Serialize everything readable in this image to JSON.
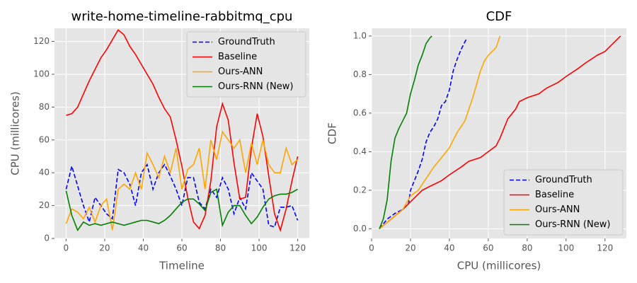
{
  "chart_data": [
    {
      "type": "line",
      "title": "write-home-timeline-rabbitmq_cpu",
      "xlabel": "Timeline",
      "ylabel": "CPU (millicores)",
      "x": [
        0,
        3,
        6,
        9,
        12,
        15,
        18,
        21,
        24,
        27,
        30,
        33,
        36,
        39,
        42,
        45,
        48,
        51,
        54,
        57,
        60,
        63,
        66,
        69,
        72,
        75,
        78,
        81,
        84,
        87,
        90,
        93,
        96,
        99,
        102,
        105,
        108,
        111,
        114,
        117,
        120
      ],
      "series": [
        {
          "name": "GroundTruth",
          "color": "#0000ff",
          "linestyle": "dashed",
          "values": [
            30,
            44,
            32,
            20,
            10,
            25,
            20,
            15,
            12,
            42,
            40,
            33,
            20,
            40,
            45,
            30,
            40,
            45,
            38,
            30,
            20,
            37,
            37,
            22,
            18,
            30,
            25,
            37,
            30,
            15,
            25,
            18,
            40,
            35,
            30,
            8,
            7,
            19,
            19,
            20,
            11
          ]
        },
        {
          "name": "Baseline",
          "color": "#ff0000",
          "linestyle": "solid",
          "values": [
            75,
            76,
            80,
            88,
            96,
            103,
            110,
            115,
            121,
            127,
            124,
            117,
            112,
            106,
            100,
            94,
            86,
            79,
            74,
            60,
            44,
            25,
            10,
            6,
            14,
            35,
            68,
            82,
            72,
            46,
            24,
            25,
            55,
            76,
            62,
            38,
            15,
            5,
            18,
            35,
            50
          ]
        },
        {
          "name": "Ours-ANN",
          "color": "#ffa500",
          "linestyle": "solid",
          "values": [
            9,
            18,
            16,
            12,
            19,
            10,
            20,
            24,
            5,
            30,
            33,
            30,
            40,
            30,
            52,
            45,
            37,
            50,
            40,
            55,
            30,
            42,
            45,
            55,
            30,
            60,
            48,
            65,
            60,
            55,
            60,
            40,
            58,
            45,
            60,
            45,
            40,
            40,
            55,
            45,
            48
          ]
        },
        {
          "name": "Ours-RNN (New)",
          "color": "#008000",
          "linestyle": "solid",
          "values": [
            29,
            14,
            5,
            10,
            8,
            9,
            8,
            9,
            10,
            9,
            8,
            9,
            10,
            11,
            11,
            10,
            9,
            11,
            14,
            18,
            22,
            24,
            24,
            21,
            17,
            28,
            30,
            8,
            16,
            20,
            20,
            14,
            9,
            13,
            19,
            24,
            26,
            27,
            27,
            28,
            30
          ]
        }
      ],
      "xlim": [
        -6,
        126
      ],
      "xticks": [
        0,
        20,
        40,
        60,
        80,
        100,
        120
      ],
      "ylim": [
        0,
        128
      ],
      "yticks": [
        0,
        20,
        40,
        60,
        80,
        100,
        120
      ],
      "grid": true,
      "legend": "upper right"
    },
    {
      "type": "line",
      "title": "CDF",
      "xlabel": "CPU (millicores)",
      "ylabel": "CDF",
      "series": [
        {
          "name": "GroundTruth",
          "color": "#0000ff",
          "linestyle": "dashed",
          "x": [
            4,
            8,
            12,
            16,
            19,
            20,
            22,
            24,
            26,
            28,
            30,
            32,
            34,
            36,
            38,
            40,
            42,
            44,
            46,
            48,
            49
          ],
          "values": [
            0,
            0.05,
            0.08,
            0.1,
            0.13,
            0.2,
            0.25,
            0.3,
            0.36,
            0.45,
            0.5,
            0.53,
            0.57,
            0.64,
            0.66,
            0.72,
            0.82,
            0.88,
            0.93,
            0.97,
            0.99
          ]
        },
        {
          "name": "Baseline",
          "color": "#ff0000",
          "linestyle": "solid",
          "x": [
            4,
            10,
            16,
            20,
            26,
            30,
            36,
            40,
            46,
            50,
            56,
            60,
            64,
            66,
            70,
            74,
            76,
            80,
            86,
            90,
            96,
            100,
            106,
            110,
            116,
            120,
            124,
            128
          ],
          "values": [
            0,
            0.05,
            0.1,
            0.14,
            0.2,
            0.22,
            0.25,
            0.28,
            0.32,
            0.35,
            0.37,
            0.4,
            0.43,
            0.47,
            0.57,
            0.62,
            0.66,
            0.68,
            0.7,
            0.73,
            0.76,
            0.79,
            0.83,
            0.86,
            0.9,
            0.92,
            0.96,
            1.0
          ]
        },
        {
          "name": "Ours-ANN",
          "color": "#ffa500",
          "linestyle": "solid",
          "x": [
            4,
            10,
            16,
            20,
            24,
            28,
            32,
            36,
            40,
            44,
            48,
            50,
            52,
            54,
            56,
            58,
            60,
            62,
            64,
            66
          ],
          "values": [
            0,
            0.05,
            0.1,
            0.17,
            0.2,
            0.26,
            0.32,
            0.37,
            0.42,
            0.5,
            0.56,
            0.62,
            0.68,
            0.75,
            0.82,
            0.87,
            0.9,
            0.92,
            0.94,
            1.0
          ]
        },
        {
          "name": "Ours-RNN (New)",
          "color": "#008000",
          "linestyle": "solid",
          "x": [
            4,
            6,
            8,
            10,
            12,
            14,
            16,
            18,
            20,
            22,
            24,
            26,
            28,
            30,
            31
          ],
          "values": [
            0,
            0.05,
            0.15,
            0.35,
            0.47,
            0.52,
            0.56,
            0.6,
            0.7,
            0.77,
            0.85,
            0.9,
            0.96,
            0.99,
            1.0
          ]
        }
      ],
      "xlim": [
        0,
        131
      ],
      "xticks": [
        0,
        20,
        40,
        60,
        80,
        100,
        120
      ],
      "ylim": [
        -0.05,
        1.04
      ],
      "yticks": [
        {
          "value": 0,
          "label": "0.0"
        },
        0.2,
        0.4,
        0.6,
        0.8,
        {
          "value": 1,
          "label": "1.0"
        }
      ],
      "grid": true,
      "legend": "lower right"
    }
  ]
}
